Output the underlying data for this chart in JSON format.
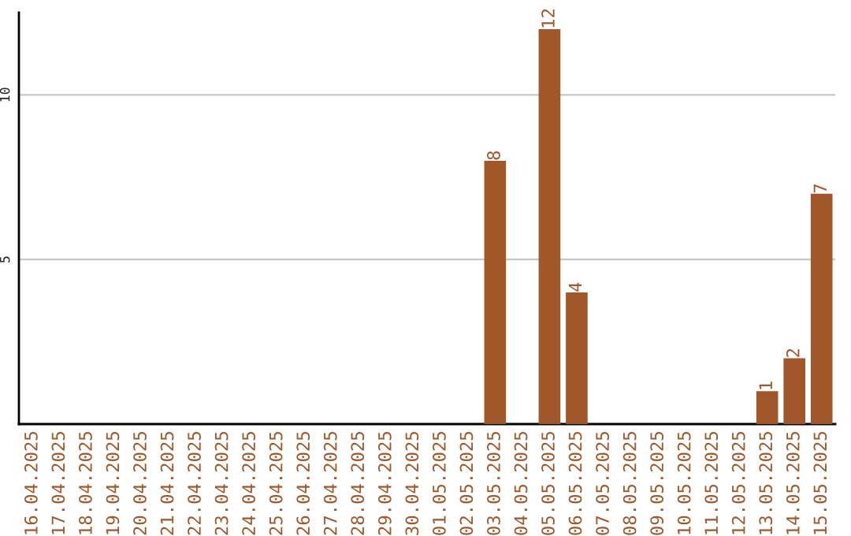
{
  "chart_data": {
    "type": "bar",
    "categories": [
      "16.04.2025",
      "17.04.2025",
      "18.04.2025",
      "19.04.2025",
      "20.04.2025",
      "21.04.2025",
      "22.04.2025",
      "23.04.2025",
      "24.04.2025",
      "25.04.2025",
      "26.04.2025",
      "27.04.2025",
      "28.04.2025",
      "29.04.2025",
      "30.04.2025",
      "01.05.2025",
      "02.05.2025",
      "03.05.2025",
      "04.05.2025",
      "05.05.2025",
      "06.05.2025",
      "07.05.2025",
      "08.05.2025",
      "09.05.2025",
      "10.05.2025",
      "11.05.2025",
      "12.05.2025",
      "13.05.2025",
      "14.05.2025",
      "15.05.2025"
    ],
    "values": [
      0,
      0,
      0,
      0,
      0,
      0,
      0,
      0,
      0,
      0,
      0,
      0,
      0,
      0,
      0,
      0,
      0,
      8,
      0,
      12,
      4,
      0,
      0,
      0,
      0,
      0,
      0,
      1,
      2,
      7
    ],
    "value_labels": [
      null,
      null,
      null,
      null,
      null,
      null,
      null,
      null,
      null,
      null,
      null,
      null,
      null,
      null,
      null,
      null,
      null,
      "8",
      null,
      "12",
      "4",
      null,
      null,
      null,
      null,
      null,
      null,
      "1",
      "2",
      "7"
    ],
    "color": "#a0582a",
    "ylim": [
      0,
      12.5
    ],
    "yticks": [
      5,
      10
    ],
    "grid": "y"
  }
}
